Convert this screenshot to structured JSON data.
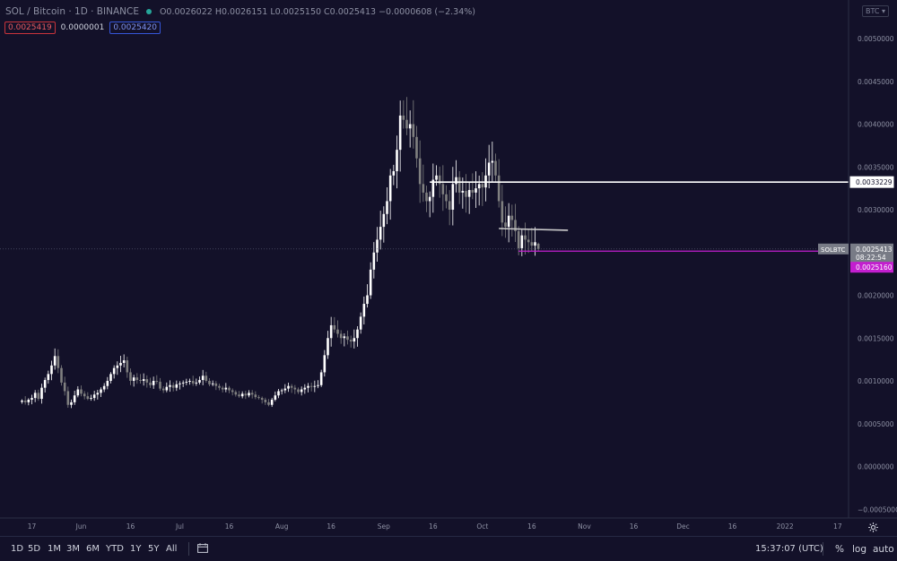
{
  "header": {
    "symbol": "SOL / Bitcoin · 1D · BINANCE",
    "ohlc": "O0.0026022 H0.0026151 L0.0025150 C0.0025413 −0.0000608 (−2.34%)",
    "bid": "0.0025419",
    "spread": "0.0000001",
    "ask": "0.0025420"
  },
  "currency_button": "BTC ▾",
  "bottom_bar": {
    "timeframes": [
      "1D",
      "5D",
      "1M",
      "3M",
      "6M",
      "YTD",
      "1Y",
      "5Y",
      "All"
    ],
    "clock": "15:37:07 (UTC)",
    "percent": "%",
    "log": "log",
    "auto": "auto"
  },
  "colors": {
    "background": "#131129",
    "candle_up": "#ffffff",
    "candle_down": "#808080",
    "price_line_label": "#787b86",
    "limit_line": "#c31ecf",
    "axis_text": "#8d90a3"
  },
  "chart_data": {
    "type": "candlestick",
    "symbol": "SOLBTC",
    "interval": "1D",
    "x_ticks": [
      {
        "date": "2021-05-17",
        "label": "17"
      },
      {
        "date": "2021-06-01",
        "label": "Jun"
      },
      {
        "date": "2021-06-16",
        "label": "16"
      },
      {
        "date": "2021-07-01",
        "label": "Jul"
      },
      {
        "date": "2021-07-16",
        "label": "16"
      },
      {
        "date": "2021-08-01",
        "label": "Aug"
      },
      {
        "date": "2021-08-16",
        "label": "16"
      },
      {
        "date": "2021-09-01",
        "label": "Sep"
      },
      {
        "date": "2021-09-16",
        "label": "16"
      },
      {
        "date": "2021-10-01",
        "label": "Oct"
      },
      {
        "date": "2021-10-16",
        "label": "16"
      },
      {
        "date": "2021-11-01",
        "label": "Nov"
      },
      {
        "date": "2021-11-16",
        "label": "16"
      },
      {
        "date": "2021-12-01",
        "label": "Dec"
      },
      {
        "date": "2021-12-16",
        "label": "16"
      },
      {
        "date": "2022-01-01",
        "label": "2022"
      },
      {
        "date": "2022-01-17",
        "label": "17"
      }
    ],
    "y_ticks": [
      "0.0050000",
      "0.0045000",
      "0.0040000",
      "0.0035000",
      "0.0030000",
      "0.0025000",
      "0.0020000",
      "0.0015000",
      "0.0010000",
      "0.0005000",
      "0.0000000",
      "−0.0005000"
    ],
    "ylim": [
      -0.0006,
      0.0055
    ],
    "candle_closes": [
      {
        "date": "2021-05-14",
        "close": 0.00077
      },
      {
        "date": "2021-05-15",
        "close": 0.00075
      },
      {
        "date": "2021-05-16",
        "close": 0.00078
      },
      {
        "date": "2021-05-17",
        "close": 0.0008
      },
      {
        "date": "2021-05-18",
        "close": 0.00086
      },
      {
        "date": "2021-05-19",
        "close": 0.00079
      },
      {
        "date": "2021-05-20",
        "close": 0.00092
      },
      {
        "date": "2021-05-21",
        "close": 0.00101
      },
      {
        "date": "2021-05-22",
        "close": 0.00108
      },
      {
        "date": "2021-05-23",
        "close": 0.00118
      },
      {
        "date": "2021-05-24",
        "close": 0.00129
      },
      {
        "date": "2021-05-25",
        "close": 0.00115
      },
      {
        "date": "2021-05-26",
        "close": 0.00098
      },
      {
        "date": "2021-05-27",
        "close": 0.00088
      },
      {
        "date": "2021-05-28",
        "close": 0.00072
      },
      {
        "date": "2021-05-29",
        "close": 0.00075
      },
      {
        "date": "2021-05-30",
        "close": 0.00083
      },
      {
        "date": "2021-05-31",
        "close": 0.0009
      },
      {
        "date": "2021-06-01",
        "close": 0.00085
      },
      {
        "date": "2021-06-02",
        "close": 0.00082
      },
      {
        "date": "2021-06-03",
        "close": 0.00079
      },
      {
        "date": "2021-06-04",
        "close": 0.0008
      },
      {
        "date": "2021-06-05",
        "close": 0.00084
      },
      {
        "date": "2021-06-06",
        "close": 0.00086
      },
      {
        "date": "2021-06-07",
        "close": 0.0009
      },
      {
        "date": "2021-06-08",
        "close": 0.00094
      },
      {
        "date": "2021-06-09",
        "close": 0.001
      },
      {
        "date": "2021-06-10",
        "close": 0.00108
      },
      {
        "date": "2021-06-11",
        "close": 0.00115
      },
      {
        "date": "2021-06-12",
        "close": 0.00118
      },
      {
        "date": "2021-06-13",
        "close": 0.00121
      },
      {
        "date": "2021-06-14",
        "close": 0.00124
      },
      {
        "date": "2021-06-15",
        "close": 0.0011
      },
      {
        "date": "2021-06-16",
        "close": 0.001
      },
      {
        "date": "2021-06-17",
        "close": 0.00104
      },
      {
        "date": "2021-06-18",
        "close": 0.00101
      },
      {
        "date": "2021-06-19",
        "close": 0.001
      },
      {
        "date": "2021-06-20",
        "close": 0.00102
      },
      {
        "date": "2021-06-21",
        "close": 0.00098
      },
      {
        "date": "2021-06-22",
        "close": 0.00095
      },
      {
        "date": "2021-06-23",
        "close": 0.001
      },
      {
        "date": "2021-06-24",
        "close": 0.00099
      },
      {
        "date": "2021-06-25",
        "close": 0.00091
      },
      {
        "date": "2021-06-26",
        "close": 0.00089
      },
      {
        "date": "2021-06-27",
        "close": 0.00093
      },
      {
        "date": "2021-06-28",
        "close": 0.00095
      },
      {
        "date": "2021-06-29",
        "close": 0.00092
      },
      {
        "date": "2021-06-30",
        "close": 0.00096
      },
      {
        "date": "2021-07-01",
        "close": 0.00097
      },
      {
        "date": "2021-07-02",
        "close": 0.00098
      },
      {
        "date": "2021-07-03",
        "close": 0.00099
      },
      {
        "date": "2021-07-04",
        "close": 0.001
      },
      {
        "date": "2021-07-05",
        "close": 0.00097
      },
      {
        "date": "2021-07-06",
        "close": 0.00098
      },
      {
        "date": "2021-07-07",
        "close": 0.00101
      },
      {
        "date": "2021-07-08",
        "close": 0.00106
      },
      {
        "date": "2021-07-09",
        "close": 0.001
      },
      {
        "date": "2021-07-10",
        "close": 0.00096
      },
      {
        "date": "2021-07-11",
        "close": 0.00097
      },
      {
        "date": "2021-07-12",
        "close": 0.00094
      },
      {
        "date": "2021-07-13",
        "close": 0.00092
      },
      {
        "date": "2021-07-14",
        "close": 0.0009
      },
      {
        "date": "2021-07-15",
        "close": 0.00092
      },
      {
        "date": "2021-07-16",
        "close": 0.00089
      },
      {
        "date": "2021-07-17",
        "close": 0.00087
      },
      {
        "date": "2021-07-18",
        "close": 0.00084
      },
      {
        "date": "2021-07-19",
        "close": 0.00082
      },
      {
        "date": "2021-07-20",
        "close": 0.00085
      },
      {
        "date": "2021-07-21",
        "close": 0.00083
      },
      {
        "date": "2021-07-22",
        "close": 0.00086
      },
      {
        "date": "2021-07-23",
        "close": 0.00084
      },
      {
        "date": "2021-07-24",
        "close": 0.00081
      },
      {
        "date": "2021-07-25",
        "close": 0.0008
      },
      {
        "date": "2021-07-26",
        "close": 0.00078
      },
      {
        "date": "2021-07-27",
        "close": 0.00075
      },
      {
        "date": "2021-07-28",
        "close": 0.00072
      },
      {
        "date": "2021-07-29",
        "close": 0.00078
      },
      {
        "date": "2021-07-30",
        "close": 0.00083
      },
      {
        "date": "2021-07-31",
        "close": 0.00088
      },
      {
        "date": "2021-08-01",
        "close": 0.00089
      },
      {
        "date": "2021-08-02",
        "close": 0.00091
      },
      {
        "date": "2021-08-03",
        "close": 0.00094
      },
      {
        "date": "2021-08-04",
        "close": 0.00092
      },
      {
        "date": "2021-08-05",
        "close": 0.0009
      },
      {
        "date": "2021-08-06",
        "close": 0.00087
      },
      {
        "date": "2021-08-07",
        "close": 0.0009
      },
      {
        "date": "2021-08-08",
        "close": 0.00092
      },
      {
        "date": "2021-08-09",
        "close": 0.00094
      },
      {
        "date": "2021-08-10",
        "close": 0.00093
      },
      {
        "date": "2021-08-11",
        "close": 0.00094
      },
      {
        "date": "2021-08-12",
        "close": 0.00095
      },
      {
        "date": "2021-08-13",
        "close": 0.0011
      },
      {
        "date": "2021-08-14",
        "close": 0.0013
      },
      {
        "date": "2021-08-15",
        "close": 0.0015
      },
      {
        "date": "2021-08-16",
        "close": 0.00165
      },
      {
        "date": "2021-08-17",
        "close": 0.0016
      },
      {
        "date": "2021-08-18",
        "close": 0.00155
      },
      {
        "date": "2021-08-19",
        "close": 0.0015
      },
      {
        "date": "2021-08-20",
        "close": 0.00152
      },
      {
        "date": "2021-08-21",
        "close": 0.00148
      },
      {
        "date": "2021-08-22",
        "close": 0.00146
      },
      {
        "date": "2021-08-23",
        "close": 0.0015
      },
      {
        "date": "2021-08-24",
        "close": 0.0016
      },
      {
        "date": "2021-08-25",
        "close": 0.00175
      },
      {
        "date": "2021-08-26",
        "close": 0.0019
      },
      {
        "date": "2021-08-27",
        "close": 0.002
      },
      {
        "date": "2021-08-28",
        "close": 0.0023
      },
      {
        "date": "2021-08-29",
        "close": 0.0025
      },
      {
        "date": "2021-08-30",
        "close": 0.00265
      },
      {
        "date": "2021-08-31",
        "close": 0.0028
      },
      {
        "date": "2021-09-01",
        "close": 0.00295
      },
      {
        "date": "2021-09-02",
        "close": 0.0031
      },
      {
        "date": "2021-09-03",
        "close": 0.0034
      },
      {
        "date": "2021-09-04",
        "close": 0.00345
      },
      {
        "date": "2021-09-05",
        "close": 0.0037
      },
      {
        "date": "2021-09-06",
        "close": 0.0041
      },
      {
        "date": "2021-09-07",
        "close": 0.00405
      },
      {
        "date": "2021-09-08",
        "close": 0.00395
      },
      {
        "date": "2021-09-09",
        "close": 0.004
      },
      {
        "date": "2021-09-10",
        "close": 0.00385
      },
      {
        "date": "2021-09-11",
        "close": 0.0036
      },
      {
        "date": "2021-09-12",
        "close": 0.0033
      },
      {
        "date": "2021-09-13",
        "close": 0.0032
      },
      {
        "date": "2021-09-14",
        "close": 0.0031
      },
      {
        "date": "2021-09-15",
        "close": 0.00315
      },
      {
        "date": "2021-09-16",
        "close": 0.00335
      },
      {
        "date": "2021-09-17",
        "close": 0.0034
      },
      {
        "date": "2021-09-18",
        "close": 0.0033
      },
      {
        "date": "2021-09-19",
        "close": 0.00318
      },
      {
        "date": "2021-09-20",
        "close": 0.0031
      },
      {
        "date": "2021-09-21",
        "close": 0.003
      },
      {
        "date": "2021-09-22",
        "close": 0.0033
      },
      {
        "date": "2021-09-23",
        "close": 0.00338
      },
      {
        "date": "2021-09-24",
        "close": 0.0032
      },
      {
        "date": "2021-09-25",
        "close": 0.00322
      },
      {
        "date": "2021-09-26",
        "close": 0.00315
      },
      {
        "date": "2021-09-27",
        "close": 0.00323
      },
      {
        "date": "2021-09-28",
        "close": 0.0032
      },
      {
        "date": "2021-09-29",
        "close": 0.00325
      },
      {
        "date": "2021-09-30",
        "close": 0.0033
      },
      {
        "date": "2021-10-01",
        "close": 0.00326
      },
      {
        "date": "2021-10-02",
        "close": 0.0034
      },
      {
        "date": "2021-10-03",
        "close": 0.00355
      },
      {
        "date": "2021-10-04",
        "close": 0.00357
      },
      {
        "date": "2021-10-05",
        "close": 0.0034
      },
      {
        "date": "2021-10-06",
        "close": 0.0031
      },
      {
        "date": "2021-10-07",
        "close": 0.00285
      },
      {
        "date": "2021-10-08",
        "close": 0.0028
      },
      {
        "date": "2021-10-09",
        "close": 0.00293
      },
      {
        "date": "2021-10-10",
        "close": 0.00288
      },
      {
        "date": "2021-10-11",
        "close": 0.00275
      },
      {
        "date": "2021-10-12",
        "close": 0.00255
      },
      {
        "date": "2021-10-13",
        "close": 0.0027
      },
      {
        "date": "2021-10-14",
        "close": 0.00265
      },
      {
        "date": "2021-10-15",
        "close": 0.00262
      },
      {
        "date": "2021-10-16",
        "close": 0.00258
      },
      {
        "date": "2021-10-17",
        "close": 0.00262
      },
      {
        "date": "2021-10-18",
        "close": 0.0025413
      }
    ],
    "last_candle": {
      "open": 0.0026022,
      "high": 0.0026151,
      "low": 0.002515,
      "close": 0.0025413
    },
    "horizontal_lines": [
      {
        "value": 0.0033229,
        "label": "0.0033229",
        "color": "#ffffff"
      },
      {
        "value": 0.002516,
        "label": "0.0025160",
        "color": "#c31ecf"
      }
    ],
    "trend_line": {
      "start": {
        "date": "2021-10-06",
        "value": 0.00278
      },
      "end": {
        "date": "2021-10-27",
        "value": 0.00276
      },
      "color": "#cccccc"
    },
    "price_label": {
      "symbol": "SOLBTC",
      "value": "0.0025413",
      "countdown": "08:22:54"
    },
    "grid": false,
    "legend": "none"
  }
}
